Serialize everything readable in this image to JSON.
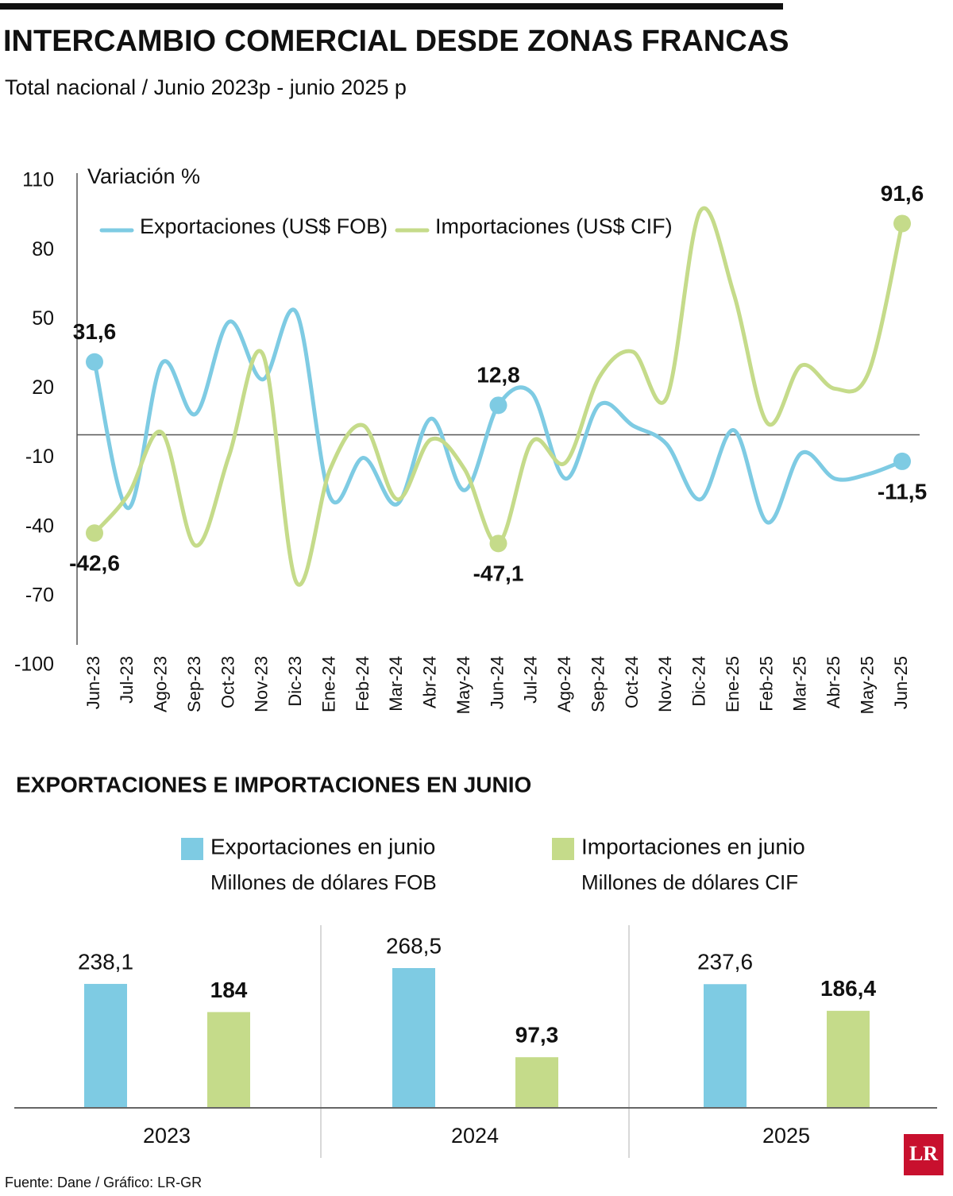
{
  "title": "INTERCAMBIO COMERCIAL DESDE ZONAS FRANCAS",
  "subtitle": "Total nacional / Junio 2023p - junio 2025 p",
  "source": "Fuente: Dane / Gráfico: LR-GR",
  "logo": "LR",
  "chart_data": [
    {
      "type": "line",
      "y_label": "Variación %",
      "categories": [
        "Jun-23",
        "Jul-23",
        "Ago-23",
        "Sep-23",
        "Oct-23",
        "Nov-23",
        "Dic-23",
        "Ene-24",
        "Feb-24",
        "Mar-24",
        "Abr-24",
        "May-24",
        "Jun-24",
        "Jul-24",
        "Ago-24",
        "Sep-24",
        "Oct-24",
        "Nov-24",
        "Dic-24",
        "Ene-25",
        "Feb-25",
        "Mar-25",
        "Abr-25",
        "May-25",
        "Jun-25"
      ],
      "ylim": [
        -100,
        110
      ],
      "yticks": [
        110,
        80,
        50,
        20,
        -10,
        -40,
        -70,
        -100
      ],
      "series": [
        {
          "name": "Exportaciones (US$ FOB)",
          "color": "#7ecbe3",
          "values": [
            31.6,
            -31.8,
            31,
            9,
            49,
            24,
            53,
            -27,
            -10,
            -30,
            7,
            -24,
            12.8,
            18,
            -19,
            13,
            4,
            -4,
            -28,
            2,
            -38,
            -8,
            -19,
            -17,
            -11.5
          ],
          "value_labels": [
            "31,6",
            null,
            null,
            null,
            null,
            null,
            null,
            null,
            null,
            null,
            null,
            null,
            "12,8",
            null,
            null,
            null,
            null,
            null,
            null,
            null,
            null,
            null,
            null,
            null,
            "-11,5"
          ]
        },
        {
          "name": "Importaciones  (US$ CIF)",
          "color": "#c5db8a",
          "values": [
            -42.6,
            -26,
            1,
            -48,
            -9,
            35,
            -64,
            -15,
            4,
            -28,
            -2,
            -15,
            -47.1,
            -3,
            -12,
            25,
            36,
            16,
            97,
            61,
            5,
            30,
            20,
            27,
            91.6
          ],
          "value_labels": [
            "-42,6",
            null,
            null,
            null,
            null,
            null,
            null,
            null,
            null,
            null,
            null,
            null,
            "-47,1",
            null,
            null,
            null,
            null,
            null,
            null,
            null,
            null,
            null,
            null,
            null,
            "91,6"
          ]
        }
      ]
    },
    {
      "type": "bar",
      "title": "EXPORTACIONES E IMPORTACIONES EN JUNIO",
      "categories": [
        "2023",
        "2024",
        "2025"
      ],
      "series": [
        {
          "name": "Exportaciones en junio",
          "unit": "Millones de dólares FOB",
          "color": "#7ecbe3",
          "values": [
            238.1,
            268.5,
            237.6
          ],
          "value_labels": [
            "238,1",
            "268,5",
            "237,6"
          ]
        },
        {
          "name": "Importaciones en junio",
          "unit": "Millones de dólares CIF",
          "color": "#c5db8a",
          "values": [
            184,
            97.3,
            186.4
          ],
          "value_labels": [
            "184",
            "97,3",
            "186,4"
          ]
        }
      ]
    }
  ]
}
